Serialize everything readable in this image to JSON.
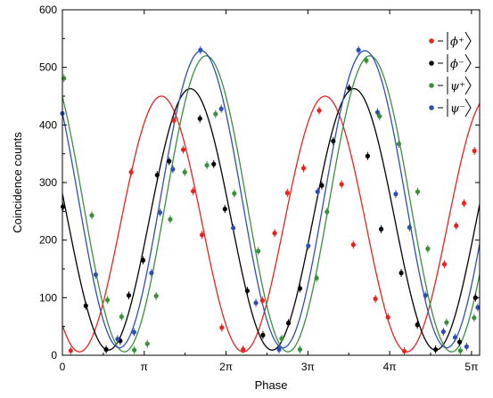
{
  "chart_data": {
    "type": "scatter",
    "xlabel": "Phase",
    "ylabel": "Coincidence counts",
    "xlim": [
      0,
      16.02
    ],
    "ylim": [
      0,
      600
    ],
    "xticks": [
      {
        "value": 0,
        "label": "0"
      },
      {
        "value": 3.1416,
        "label": "π"
      },
      {
        "value": 6.2832,
        "label": "2π"
      },
      {
        "value": 9.4248,
        "label": "3π"
      },
      {
        "value": 12.5664,
        "label": "4π"
      },
      {
        "value": 15.708,
        "label": "5π"
      }
    ],
    "yticks": [
      0,
      100,
      200,
      300,
      400,
      500,
      600
    ],
    "legend_position": "top-right",
    "series": [
      {
        "name": "ϕ⁺",
        "color": "#e8231f",
        "fit": {
          "amplitude": 222,
          "offset": 228,
          "phase_max": 3.8,
          "period": 6.283
        },
        "points": [
          {
            "x": 0.32,
            "y": 8
          },
          {
            "x": 2.64,
            "y": 318
          },
          {
            "x": 4.28,
            "y": 408
          },
          {
            "x": 4.64,
            "y": 357
          },
          {
            "x": 5.02,
            "y": 285
          },
          {
            "x": 5.36,
            "y": 209
          },
          {
            "x": 6.12,
            "y": 48
          },
          {
            "x": 6.94,
            "y": 10
          },
          {
            "x": 7.68,
            "y": 95
          },
          {
            "x": 8.15,
            "y": 212
          },
          {
            "x": 8.64,
            "y": 282
          },
          {
            "x": 9.26,
            "y": 325
          },
          {
            "x": 9.86,
            "y": 425
          },
          {
            "x": 10.72,
            "y": 297
          },
          {
            "x": 11.17,
            "y": 192
          },
          {
            "x": 12.02,
            "y": 98
          },
          {
            "x": 12.5,
            "y": 66
          },
          {
            "x": 13.13,
            "y": 7
          },
          {
            "x": 14.67,
            "y": 158
          },
          {
            "x": 15.12,
            "y": 225
          },
          {
            "x": 15.42,
            "y": 264
          },
          {
            "x": 15.82,
            "y": 355
          }
        ]
      },
      {
        "name": "ϕ⁻",
        "color": "#000000",
        "fit": {
          "amplitude": 227,
          "offset": 236,
          "phase_max": 4.91,
          "period": 6.283
        },
        "points": [
          {
            "x": 0.02,
            "y": 258
          },
          {
            "x": 0.9,
            "y": 86
          },
          {
            "x": 1.68,
            "y": 10
          },
          {
            "x": 2.22,
            "y": 25
          },
          {
            "x": 2.55,
            "y": 104
          },
          {
            "x": 3.1,
            "y": 165
          },
          {
            "x": 3.64,
            "y": 313
          },
          {
            "x": 4.1,
            "y": 337
          },
          {
            "x": 5.28,
            "y": 411
          },
          {
            "x": 5.81,
            "y": 332
          },
          {
            "x": 6.24,
            "y": 254
          },
          {
            "x": 7.1,
            "y": 112
          },
          {
            "x": 7.7,
            "y": 35
          },
          {
            "x": 8.68,
            "y": 56
          },
          {
            "x": 9.12,
            "y": 116
          },
          {
            "x": 9.96,
            "y": 295
          },
          {
            "x": 10.4,
            "y": 372
          },
          {
            "x": 11.01,
            "y": 464
          },
          {
            "x": 11.72,
            "y": 346
          },
          {
            "x": 12.24,
            "y": 219
          },
          {
            "x": 13.01,
            "y": 143
          },
          {
            "x": 13.63,
            "y": 53
          },
          {
            "x": 14.33,
            "y": 10
          },
          {
            "x": 15.25,
            "y": 23
          },
          {
            "x": 15.86,
            "y": 100
          }
        ]
      },
      {
        "name": "ψ⁺",
        "color": "#3a8f3a",
        "fit": {
          "amplitude": 257,
          "offset": 263,
          "phase_max": 5.52,
          "period": 6.283
        },
        "points": [
          {
            "x": 0.06,
            "y": 481
          },
          {
            "x": 1.13,
            "y": 243
          },
          {
            "x": 1.73,
            "y": 96
          },
          {
            "x": 2.27,
            "y": 67
          },
          {
            "x": 2.76,
            "y": 9
          },
          {
            "x": 3.26,
            "y": 20
          },
          {
            "x": 3.6,
            "y": 103
          },
          {
            "x": 4.14,
            "y": 236
          },
          {
            "x": 4.7,
            "y": 318
          },
          {
            "x": 5.55,
            "y": 330
          },
          {
            "x": 5.88,
            "y": 419
          },
          {
            "x": 6.6,
            "y": 281
          },
          {
            "x": 7.52,
            "y": 181
          },
          {
            "x": 8.42,
            "y": 29
          },
          {
            "x": 9.12,
            "y": 10
          },
          {
            "x": 9.76,
            "y": 134
          },
          {
            "x": 10.16,
            "y": 249
          },
          {
            "x": 11.67,
            "y": 512
          },
          {
            "x": 12.18,
            "y": 415
          },
          {
            "x": 12.92,
            "y": 367
          },
          {
            "x": 13.64,
            "y": 284
          },
          {
            "x": 14.03,
            "y": 185
          },
          {
            "x": 14.75,
            "y": 57
          },
          {
            "x": 15.28,
            "y": 8
          },
          {
            "x": 15.81,
            "y": 65
          }
        ]
      },
      {
        "name": "ψ⁻",
        "color": "#2d4fb5",
        "fit": {
          "amplitude": 258,
          "offset": 271,
          "phase_max": 5.33,
          "period": 6.283
        },
        "points": [
          {
            "x": 0.0,
            "y": 420
          },
          {
            "x": 1.28,
            "y": 140
          },
          {
            "x": 2.12,
            "y": 28
          },
          {
            "x": 2.75,
            "y": 40
          },
          {
            "x": 3.42,
            "y": 143
          },
          {
            "x": 3.75,
            "y": 248
          },
          {
            "x": 4.24,
            "y": 323
          },
          {
            "x": 5.3,
            "y": 530
          },
          {
            "x": 6.1,
            "y": 428
          },
          {
            "x": 6.56,
            "y": 221
          },
          {
            "x": 7.43,
            "y": 91
          },
          {
            "x": 8.32,
            "y": 10
          },
          {
            "x": 9.44,
            "y": 190
          },
          {
            "x": 9.8,
            "y": 284
          },
          {
            "x": 11.37,
            "y": 530
          },
          {
            "x": 12.1,
            "y": 422
          },
          {
            "x": 12.8,
            "y": 280
          },
          {
            "x": 13.33,
            "y": 222
          },
          {
            "x": 13.94,
            "y": 104
          },
          {
            "x": 14.63,
            "y": 41
          },
          {
            "x": 15.08,
            "y": 31
          },
          {
            "x": 15.52,
            "y": 15
          },
          {
            "x": 15.95,
            "y": 83
          }
        ]
      }
    ]
  }
}
